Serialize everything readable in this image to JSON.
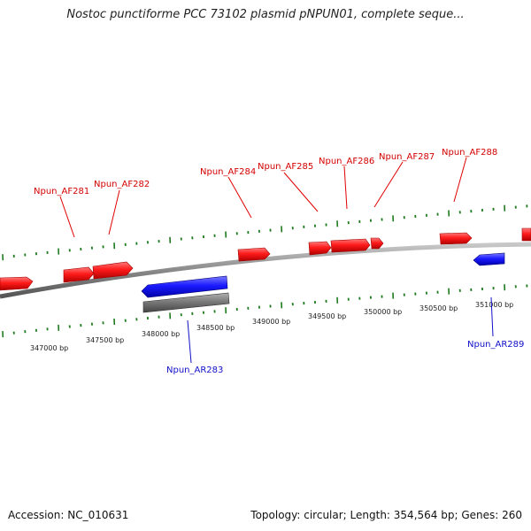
{
  "header": {
    "title": "Nostoc punctiforme PCC 73102 plasmid pNPUN01, complete seque..."
  },
  "footer": {
    "accession": "Accession: NC_010631",
    "summary": "Topology: circular; Length: 354,564 bp; Genes: 260"
  },
  "colors": {
    "forward_gene": "#ff0000",
    "reverse_gene": "#0000ff",
    "other_feature": "#808080",
    "backbone": "#888888",
    "ticks": "#1e7a1e",
    "forward_label": "#d40000",
    "reverse_label": "#1010c8"
  },
  "scale_labels": [
    "347000 bp",
    "347500 bp",
    "348000 bp",
    "348500 bp",
    "349000 bp",
    "349500 bp",
    "350000 bp",
    "350500 bp",
    "351000 bp"
  ],
  "forward_labels": [
    "Npun_AF281",
    "Npun_AF282",
    "Npun_AF284",
    "Npun_AF285",
    "Npun_AF286",
    "Npun_AF287",
    "Npun_AF288"
  ],
  "reverse_labels": [
    "Npun_AR283",
    "Npun_AR289"
  ]
}
